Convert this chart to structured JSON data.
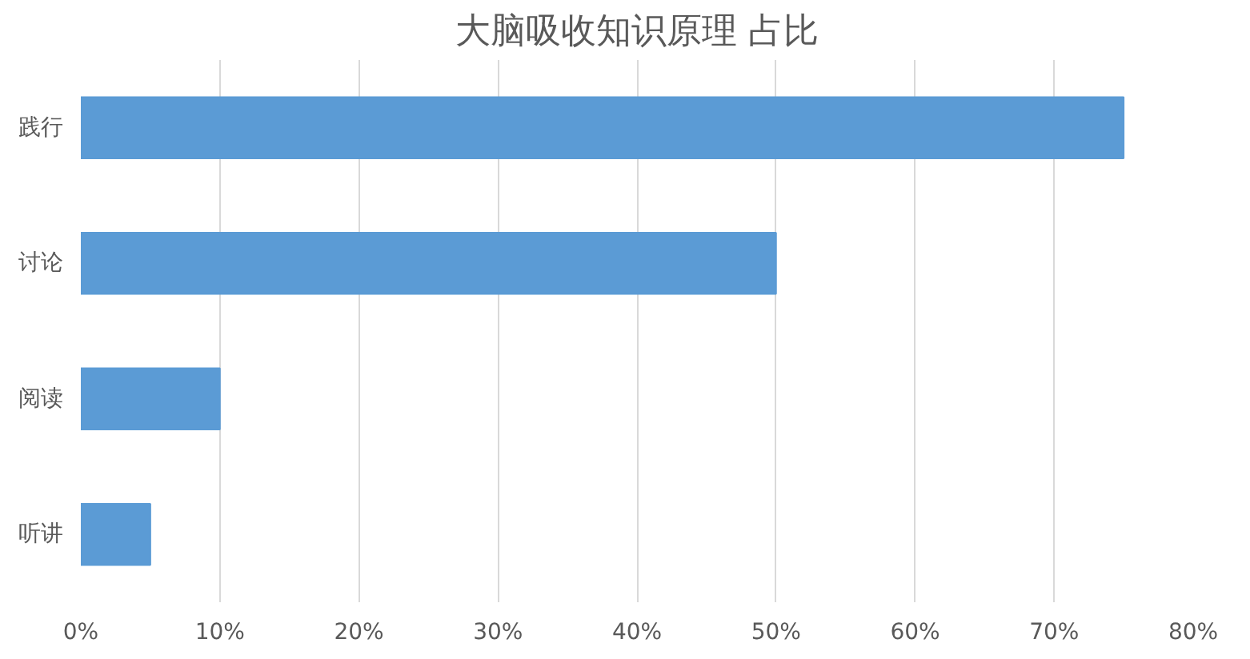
{
  "chart_data": {
    "type": "bar",
    "orientation": "horizontal",
    "title": "大脑吸收知识原理 占比",
    "categories": [
      "践行",
      "讨论",
      "阅读",
      "听讲"
    ],
    "values": [
      75,
      50,
      10,
      5
    ],
    "color": "#5b9bd5",
    "xlim": [
      0,
      80
    ],
    "xticks": [
      {
        "value": 0,
        "label": "0%"
      },
      {
        "value": 10,
        "label": "10%"
      },
      {
        "value": 20,
        "label": "20%"
      },
      {
        "value": 30,
        "label": "30%"
      },
      {
        "value": 40,
        "label": "40%"
      },
      {
        "value": 50,
        "label": "50%"
      },
      {
        "value": 60,
        "label": "60%"
      },
      {
        "value": 70,
        "label": "70%"
      },
      {
        "value": 80,
        "label": "80%"
      }
    ],
    "grid": "x"
  }
}
